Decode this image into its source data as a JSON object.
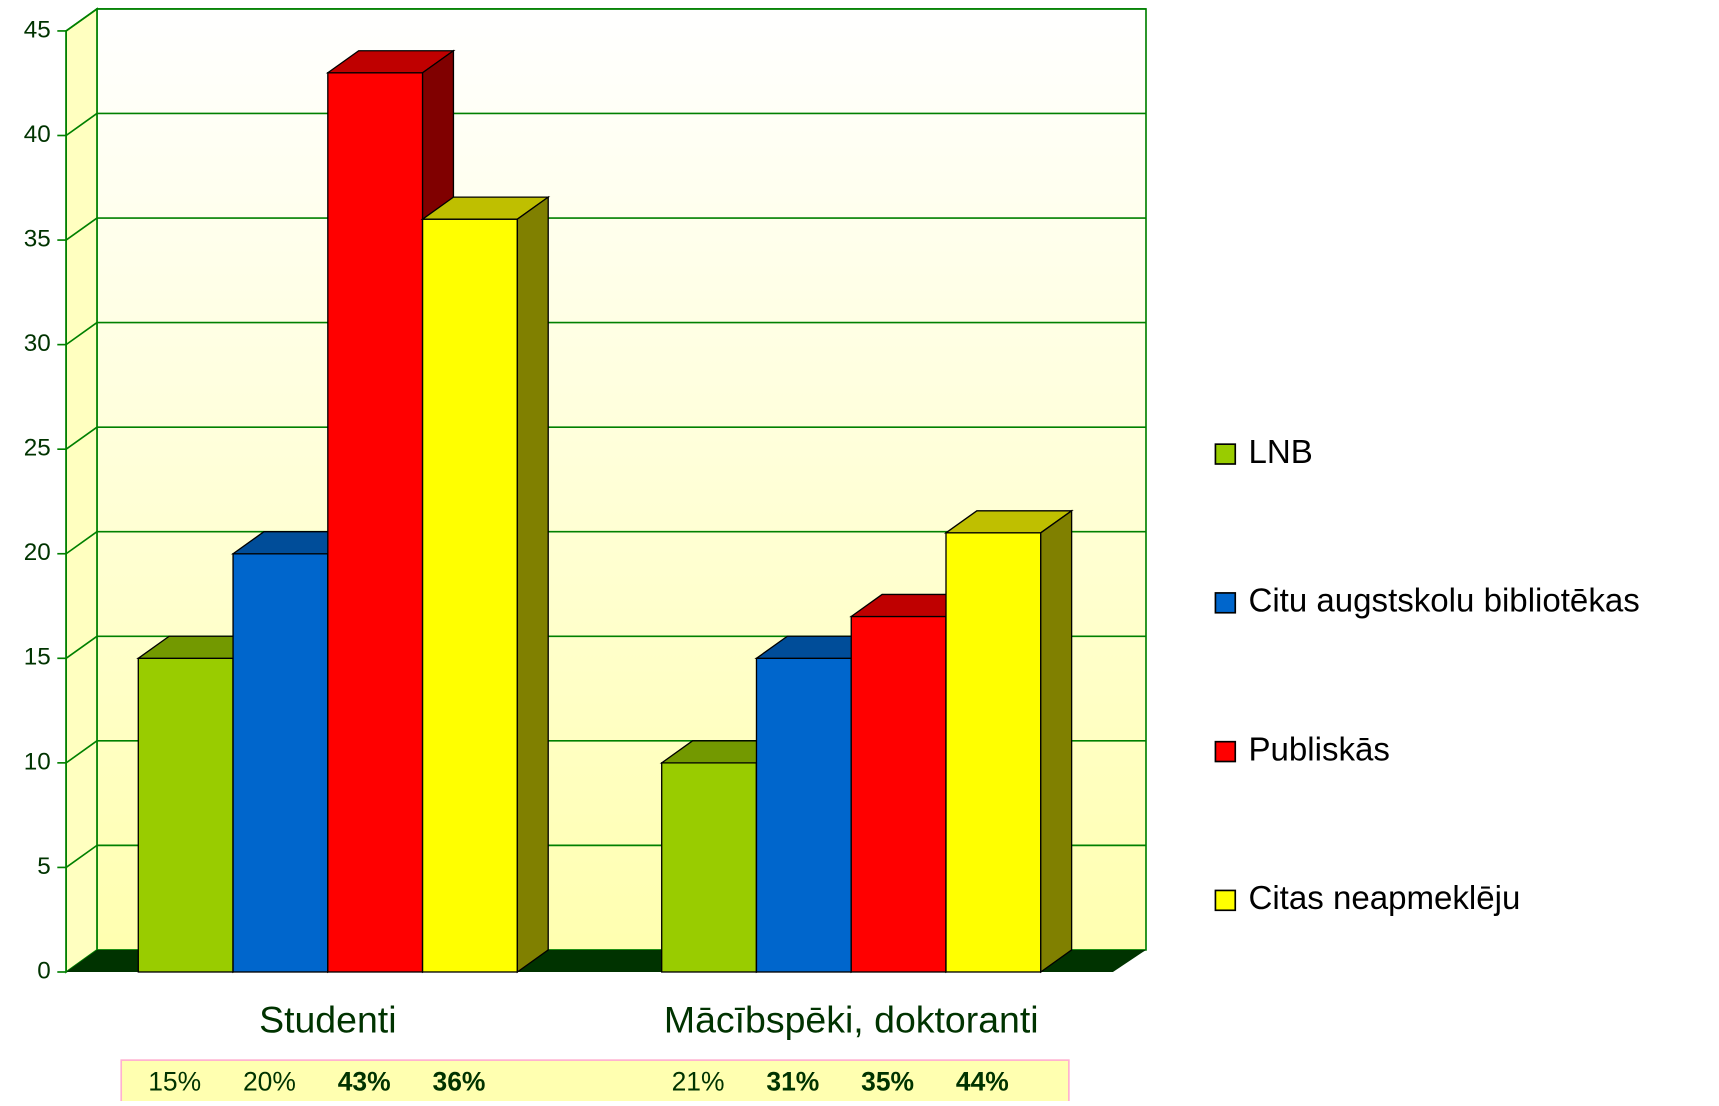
{
  "chart_data": {
    "type": "bar3d",
    "categories": [
      "Studenti",
      "Mācībspēki, doktoranti"
    ],
    "series": [
      {
        "name": "LNB",
        "color": "#99cc00",
        "values": [
          15,
          10
        ]
      },
      {
        "name": "Citu augstskolu bibliotēkas",
        "color": "#0066cc",
        "values": [
          20,
          15
        ]
      },
      {
        "name": "Publiskās",
        "color": "#ff0000",
        "values": [
          43,
          17
        ]
      },
      {
        "name": "Citas neapmeklēju",
        "color": "#ffff00",
        "values": [
          36,
          21
        ]
      }
    ],
    "ylim": [
      0,
      45
    ],
    "yticks": [
      0,
      5,
      10,
      15,
      20,
      25,
      30,
      35,
      40,
      45
    ],
    "grid": true,
    "legend": "right",
    "percent_labels": [
      [
        "15%",
        "20%",
        "43%",
        "36%"
      ],
      [
        "21%",
        "31%",
        "35%",
        "44%"
      ]
    ],
    "percent_bold": [
      [
        false,
        false,
        true,
        true
      ],
      [
        false,
        true,
        true,
        true
      ]
    ]
  }
}
